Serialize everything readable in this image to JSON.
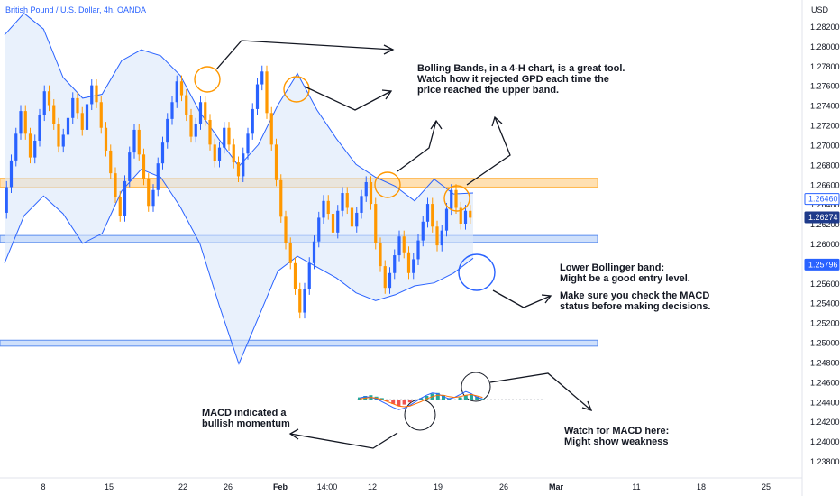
{
  "header": {
    "symbol_title": "British Pound / U.S. Dollar, 4h, OANDA",
    "currency": "USD"
  },
  "colors": {
    "up": "#2962ff",
    "down": "#ff9800",
    "band_fill": "#dbe8fa",
    "band_line": "#2962ff",
    "resistance_zone": "#ffe0b2",
    "support_zone": "#cfe0fb",
    "circle_orange": "#ff9800",
    "circle_blue": "#2962ff"
  },
  "annotations": {
    "bollinger_note": "Bolling Bands, in a 4-H chart, is a great tool.\nWatch how it rejected GPD each time the\nprice reached the upper band.",
    "lower_band_note": "Lower Bollinger band:\nMight be a good entry level.",
    "macd_check_note": "Make sure you check the MACD\nstatus before making decisions.",
    "macd_bullish_note": "MACD indicated a\nbullish momentum",
    "macd_weakness_note": "Watch for MACD here:\nMight show weakness"
  },
  "chart_data": {
    "type": "candlestick",
    "title": "British Pound / U.S. Dollar, 4h, OANDA",
    "y_axis_unit": "USD",
    "ylim": [
      1.2372,
      1.284
    ],
    "y_ticks": [
      "1.28200",
      "1.28000",
      "1.27800",
      "1.27600",
      "1.27400",
      "1.27200",
      "1.27000",
      "1.26800",
      "1.26600",
      "1.26400",
      "1.26200",
      "1.26000",
      "1.25800",
      "1.25600",
      "1.25400",
      "1.25200",
      "1.25000",
      "1.24800",
      "1.24600",
      "1.24400",
      "1.24200",
      "1.24000",
      "1.23800"
    ],
    "x_ticks": [
      "8",
      "15",
      "22",
      "26",
      "Feb",
      "14:00",
      "12",
      "19",
      "26",
      "Mar",
      "11",
      "18",
      "25"
    ],
    "price_labels": [
      {
        "value": 1.2646,
        "text": "1.26460",
        "style": "outline"
      },
      {
        "value": 1.26274,
        "text": "1.26274",
        "style": "filled-dark"
      },
      {
        "value": 1.25796,
        "text": "1.25796",
        "style": "filled-blue"
      }
    ],
    "zones": [
      {
        "name": "resistance",
        "from": 1.2658,
        "to": 1.2667,
        "color": "#ffe0b2"
      },
      {
        "name": "support",
        "from": 1.2602,
        "to": 1.2609,
        "color": "#cfe0fb"
      },
      {
        "name": "support-low",
        "from": 1.2497,
        "to": 1.2503,
        "color": "#cfe0fb"
      }
    ],
    "price_path": [
      1.2632,
      1.2658,
      1.2685,
      1.2712,
      1.2735,
      1.2712,
      1.2688,
      1.2705,
      1.2731,
      1.2755,
      1.2741,
      1.2722,
      1.2699,
      1.2711,
      1.2728,
      1.2748,
      1.2733,
      1.2716,
      1.2742,
      1.2761,
      1.2744,
      1.2718,
      1.2695,
      1.2672,
      1.2648,
      1.2629,
      1.2664,
      1.2693,
      1.2716,
      1.2691,
      1.2666,
      1.2639,
      1.2655,
      1.2682,
      1.2703,
      1.2727,
      1.2744,
      1.2765,
      1.2751,
      1.2731,
      1.2709,
      1.2722,
      1.2744,
      1.2726,
      1.2701,
      1.2684,
      1.2698,
      1.2718,
      1.2701,
      1.2683,
      1.2669,
      1.2692,
      1.2712,
      1.2737,
      1.2762,
      1.2775,
      1.2733,
      1.2701,
      1.2665,
      1.2628,
      1.2601,
      1.2581,
      1.2555,
      1.2531,
      1.2555,
      1.2581,
      1.2603,
      1.2627,
      1.2644,
      1.2631,
      1.2612,
      1.2634,
      1.2652,
      1.2637,
      1.2618,
      1.2632,
      1.2649,
      1.2663,
      1.2641,
      1.2601,
      1.2578,
      1.2556,
      1.2571,
      1.2589,
      1.2608,
      1.2592,
      1.2571,
      1.2585,
      1.2604,
      1.2623,
      1.2641,
      1.2618,
      1.2599,
      1.2614,
      1.2636,
      1.2655,
      1.2637,
      1.2621,
      1.2634,
      1.2627
    ],
    "bollinger_upper": [
      1.2812,
      1.2834,
      1.2818,
      1.2769,
      1.2748,
      1.2752,
      1.2786,
      1.2797,
      1.2791,
      1.2771,
      1.2734,
      1.2706,
      1.2679,
      1.2701,
      1.2741,
      1.2773,
      1.2736,
      1.2707,
      1.2681,
      1.2668,
      1.2659,
      1.2644,
      1.2666,
      1.2651,
      1.2652
    ],
    "bollinger_lower": [
      1.2581,
      1.2629,
      1.2649,
      1.2631,
      1.2601,
      1.2611,
      1.2654,
      1.2676,
      1.2668,
      1.2638,
      1.2601,
      1.2538,
      1.2479,
      1.2526,
      1.2573,
      1.2588,
      1.2577,
      1.2566,
      1.2551,
      1.2543,
      1.2549,
      1.2558,
      1.2561,
      1.2571,
      1.2586
    ],
    "macd": {
      "histogram": [
        0.3,
        0.5,
        0.6,
        0.4,
        0.2,
        -0.2,
        -0.6,
        -0.9,
        -0.7,
        -0.4,
        -0.1,
        0.2,
        0.5,
        0.8,
        0.9,
        0.6,
        0.2,
        -0.1,
        0.3,
        0.6,
        0.7,
        0.4,
        0.1
      ],
      "macd_line": [
        0.2,
        0.4,
        0.3,
        0.1,
        -0.3,
        -0.7,
        -1.1,
        -1.4,
        -1.2,
        -0.8,
        -0.3,
        0.2,
        0.6,
        0.9,
        0.8,
        0.4,
        0.1,
        0.3,
        0.7,
        1.1,
        0.8,
        0.3,
        0.1
      ],
      "signal_line": [
        0.1,
        0.2,
        0.3,
        0.2,
        0.0,
        -0.3,
        -0.6,
        -0.9,
        -1.0,
        -0.9,
        -0.6,
        -0.3,
        0.1,
        0.4,
        0.6,
        0.6,
        0.4,
        0.3,
        0.4,
        0.6,
        0.7,
        0.5,
        0.3
      ]
    }
  }
}
